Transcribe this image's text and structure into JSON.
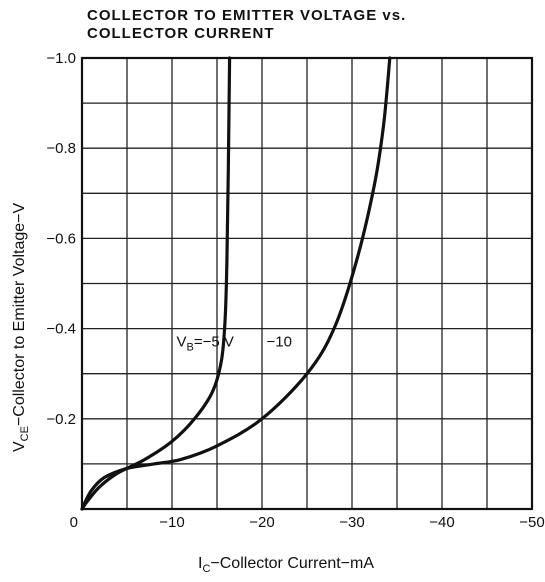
{
  "chart_data": {
    "type": "line",
    "title_line1": "COLLECTOR TO EMITTER VOLTAGE vs.",
    "title_line2": "COLLECTOR CURRENT",
    "xlabel": {
      "main": "I",
      "sub": "C",
      "rest": "−Collector Current−mA"
    },
    "ylabel": {
      "main": "V",
      "sub": "CE",
      "rest": "−Collector to Emitter Voltage−V"
    },
    "xlim": [
      0,
      -50
    ],
    "ylim": [
      0,
      -1.0
    ],
    "grid": true,
    "x_ticks": [
      {
        "value": 0,
        "label": "0"
      },
      {
        "value": -10,
        "label": "−10"
      },
      {
        "value": -20,
        "label": "−20"
      },
      {
        "value": -30,
        "label": "−30"
      },
      {
        "value": -40,
        "label": "−40"
      },
      {
        "value": -50,
        "label": "−50"
      }
    ],
    "y_ticks": [
      {
        "value": -0.2,
        "label": "−0.2"
      },
      {
        "value": -0.4,
        "label": "−0.4"
      },
      {
        "value": -0.6,
        "label": "−0.6"
      },
      {
        "value": -0.8,
        "label": "−0.8"
      },
      {
        "value": -1.0,
        "label": "−1.0"
      }
    ],
    "series": [
      {
        "name": "V_B = −5 V",
        "x": [
          0,
          -0.7,
          -2,
          -4,
          -7,
          -10,
          -12.5,
          -14.5,
          -15.5,
          -15.9,
          -16.1,
          -16.25,
          -16.4
        ],
        "y": [
          0,
          -0.02,
          -0.05,
          -0.08,
          -0.11,
          -0.15,
          -0.2,
          -0.26,
          -0.33,
          -0.42,
          -0.55,
          -0.75,
          -1.0
        ]
      },
      {
        "name": "−10",
        "x": [
          0,
          -1,
          -2.5,
          -5,
          -8,
          -11,
          -15,
          -20,
          -25,
          -28,
          -30.5,
          -32.5,
          -33.5,
          -34.2
        ],
        "y": [
          0,
          -0.04,
          -0.07,
          -0.09,
          -0.1,
          -0.11,
          -0.14,
          -0.2,
          -0.3,
          -0.4,
          -0.55,
          -0.72,
          -0.85,
          -1.0
        ]
      }
    ],
    "annotations": [
      {
        "main": "V",
        "sub": "B",
        "rest": "=−5 V",
        "x": -10.5,
        "y": -0.36
      },
      {
        "text": "−10",
        "x": -20.5,
        "y": -0.36
      }
    ]
  }
}
